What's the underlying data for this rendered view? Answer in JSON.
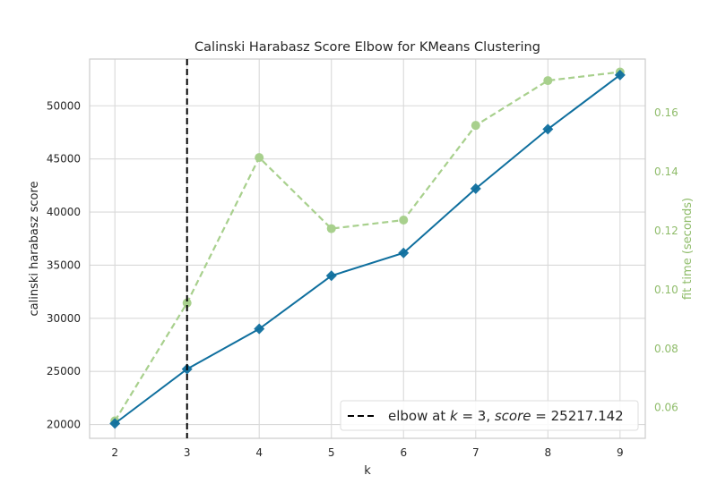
{
  "chart_data": {
    "type": "line",
    "title": "Calinski Harabasz Score Elbow for KMeans Clustering",
    "xlabel": "k",
    "ylabel": "calinski harabasz score",
    "y2label": "fit time (seconds)",
    "x": [
      2,
      3,
      4,
      5,
      6,
      7,
      8,
      9
    ],
    "xticks": [
      "2",
      "3",
      "4",
      "5",
      "6",
      "7",
      "8",
      "9"
    ],
    "xlim": [
      1.65,
      9.35
    ],
    "ylim": [
      18700,
      54400
    ],
    "yticks": [
      20000,
      25000,
      30000,
      35000,
      40000,
      45000,
      50000
    ],
    "y2lim": [
      0.0496,
      0.1782
    ],
    "y2ticks": [
      0.06,
      0.08,
      0.1,
      0.12,
      0.14,
      0.16
    ],
    "y2tick_labels": [
      "0.06",
      "0.08",
      "0.10",
      "0.12",
      "0.14",
      "0.16"
    ],
    "grid": true,
    "legend_position": "bottom-right",
    "series": [
      {
        "axis": "left",
        "color": "#0f6f9e",
        "style": "solid",
        "marker": "diamond",
        "values": [
          20100,
          25217.142,
          29000,
          34000,
          36150,
          42200,
          47800,
          52900
        ]
      },
      {
        "axis": "right",
        "color": "#a8d08d",
        "style": "dashed",
        "marker": "circle",
        "values": [
          0.0555,
          0.0955,
          0.1448,
          0.1207,
          0.1236,
          0.1557,
          0.1709,
          0.1738
        ]
      }
    ],
    "elbow": {
      "k": 3,
      "score": 25217.142,
      "color": "#000000",
      "legend_label_prefix": "elbow at ",
      "legend_label_k": "k",
      "legend_label_eq1": " = 3, ",
      "legend_label_score": "score",
      "legend_label_eq2": " = 25217.142"
    }
  }
}
